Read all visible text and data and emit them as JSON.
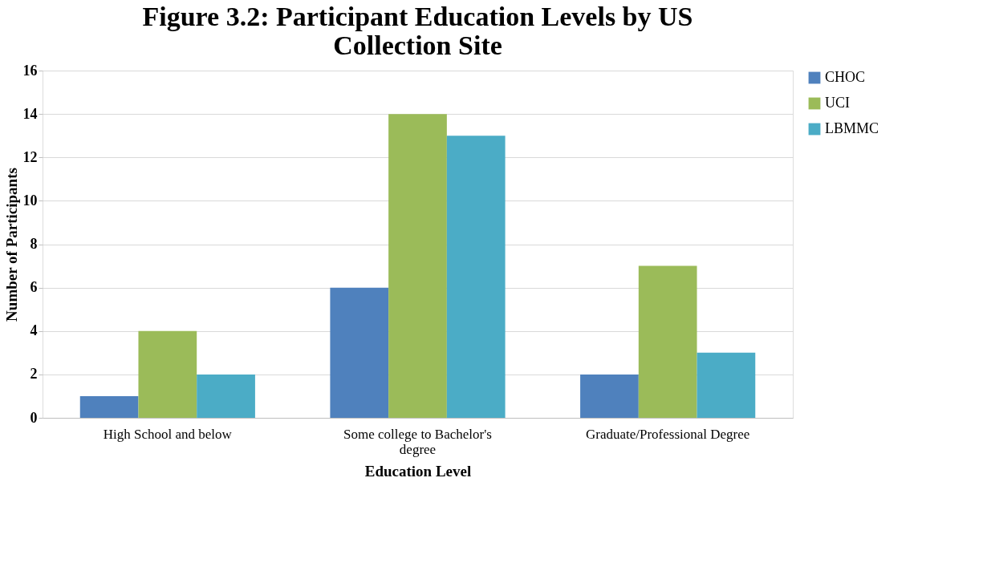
{
  "chart_data": {
    "type": "bar",
    "title": "Figure 3.2: Participant Education Levels by US Collection Site",
    "xlabel": "Education Level",
    "ylabel": "Number of Participants",
    "categories": [
      "High School and below",
      "Some college to Bachelor's degree",
      "Graduate/Professional Degree"
    ],
    "series": [
      {
        "name": "CHOC",
        "color": "#4f81bd",
        "values": [
          1,
          6,
          2
        ]
      },
      {
        "name": "UCI",
        "color": "#9bbb59",
        "values": [
          4,
          14,
          7
        ]
      },
      {
        "name": "LBMMC",
        "color": "#4bacc6",
        "values": [
          2,
          13,
          3
        ]
      }
    ],
    "ylim": [
      0,
      16
    ],
    "yticks": [
      0,
      2,
      4,
      6,
      8,
      10,
      12,
      14,
      16
    ],
    "grid": "y",
    "legend": "right"
  }
}
